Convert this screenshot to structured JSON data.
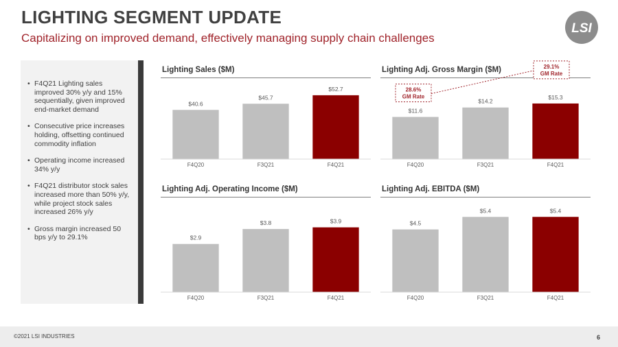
{
  "header": {
    "title": "LIGHTING SEGMENT UPDATE",
    "subtitle": "Capitalizing on improved demand, effectively managing supply chain challenges",
    "logo_text": "LSI"
  },
  "sidebar": {
    "bullets": [
      "F4Q21 Lighting sales improved 30% y/y and 15% sequentially, given improved end-market demand",
      "Consecutive price increases holding, offsetting continued commodity inflation",
      "Operating income increased 34% y/y",
      "F4Q21 distributor stock sales increased more than 50% y/y, while project stock sales increased 26% y/y",
      "Gross margin increased 50 bps y/y to 29.1%"
    ]
  },
  "footer": {
    "copyright": "©2021 LSI INDUSTRIES",
    "page_number": "6"
  },
  "colors": {
    "title": "#404040",
    "accent": "#a0232a",
    "bar_gray": "#bfbfbf",
    "bar_red": "#8b0000"
  },
  "chart_data": [
    {
      "type": "bar",
      "title": "Lighting Sales ($M)",
      "categories": [
        "F4Q20",
        "F3Q21",
        "F4Q21"
      ],
      "values": [
        40.6,
        45.7,
        52.7
      ],
      "labels": [
        "$40.6",
        "$45.7",
        "$52.7"
      ],
      "highlight_index": 2,
      "ylim": [
        0,
        60
      ]
    },
    {
      "type": "bar",
      "title": "Lighting Adj. Gross Margin ($M)",
      "categories": [
        "F4Q20",
        "F3Q21",
        "F4Q21"
      ],
      "values": [
        11.6,
        14.2,
        15.3
      ],
      "labels": [
        "$11.6",
        "$14.2",
        "$15.3"
      ],
      "highlight_index": 2,
      "ylim": [
        0,
        20
      ],
      "annotations": [
        {
          "text": [
            "28.6%",
            "GM Rate"
          ],
          "target_index": 0
        },
        {
          "text": [
            "29.1%",
            "GM Rate"
          ],
          "target_index": 2
        }
      ]
    },
    {
      "type": "bar",
      "title": "Lighting Adj. Operating Income ($M)",
      "categories": [
        "F4Q20",
        "F3Q21",
        "F4Q21"
      ],
      "values": [
        2.9,
        3.8,
        3.9
      ],
      "labels": [
        "$2.9",
        "$3.8",
        "$3.9"
      ],
      "highlight_index": 2,
      "ylim": [
        0,
        5.2
      ]
    },
    {
      "type": "bar",
      "title": "Lighting Adj. EBITDA ($M)",
      "categories": [
        "F4Q20",
        "F3Q21",
        "F4Q21"
      ],
      "values": [
        4.5,
        5.4,
        5.4
      ],
      "labels": [
        "$4.5",
        "$5.4",
        "$5.4"
      ],
      "highlight_index": 2,
      "ylim": [
        0,
        6.2
      ]
    }
  ]
}
